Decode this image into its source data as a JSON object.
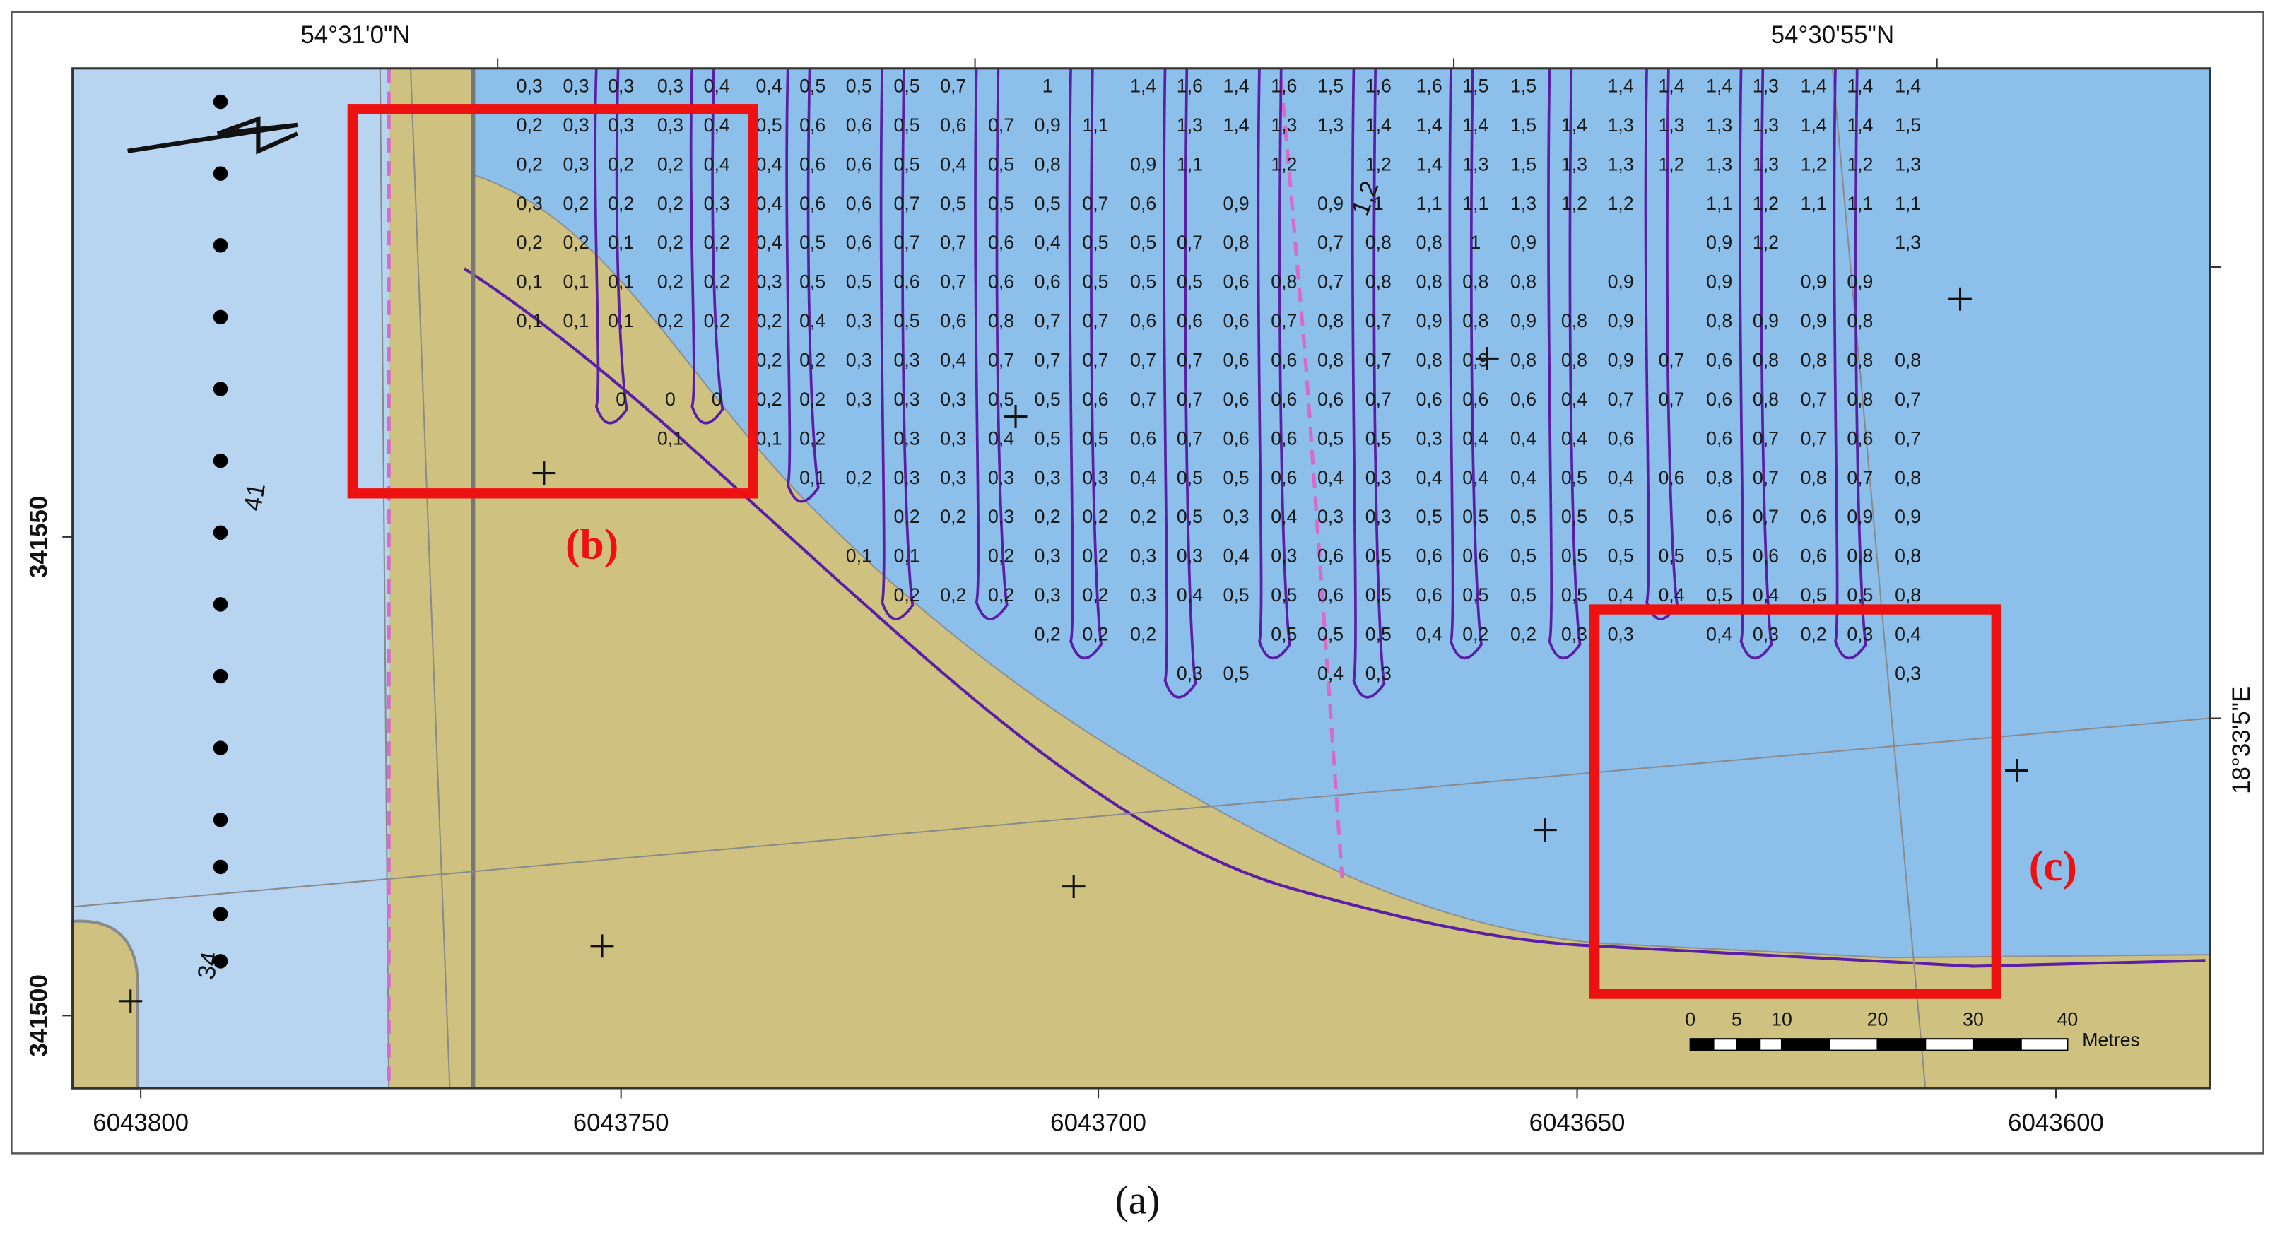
{
  "map": {
    "top_labels": [
      "54°31'0\"N",
      "54°30'55\"N"
    ],
    "left_labels": [
      "341550",
      "341500"
    ],
    "right_label": "18°33'5\"E",
    "bottom_labels": [
      "6043800",
      "6043750",
      "6043700",
      "6043650",
      "6043600"
    ],
    "line_labels": [
      "41",
      "34",
      "1,2"
    ],
    "scale": {
      "ticks": [
        "0",
        "5",
        "10",
        "20",
        "30",
        "40"
      ],
      "unit": "Metres"
    },
    "callouts": [
      "(b)",
      "(c)"
    ],
    "soundings": [
      [
        "0,3",
        "0,2",
        "0,2",
        "0,3",
        "0,2",
        "0,1",
        "0,1"
      ],
      [
        "0,3",
        "0,3",
        "0,3",
        "0,2",
        "0,2",
        "0,1",
        "0,1"
      ],
      [
        "0,3",
        "0,3",
        "0,2",
        "0,2",
        "0,1",
        "0,1",
        "0,1",
        null,
        "0"
      ],
      [
        "0,3",
        "0,3",
        "0,2",
        "0,2",
        "0,2",
        "0,2",
        "0,2",
        null,
        "0",
        "0,1"
      ],
      [
        "0,4",
        "0,4",
        "0,4",
        "0,3",
        "0,2",
        "0,2",
        "0,2",
        null,
        "0"
      ],
      [
        "0,4",
        "0,5",
        "0,4",
        "0,4",
        "0,4",
        "0,3",
        "0,2",
        "0,2",
        "0,2",
        "0,1"
      ],
      [
        "0,5",
        "0,6",
        "0,6",
        "0,6",
        "0,5",
        "0,5",
        "0,4",
        "0,2",
        "0,2",
        "0,2",
        "0,1"
      ],
      [
        "0,5",
        "0,6",
        "0,6",
        "0,6",
        "0,6",
        "0,5",
        "0,3",
        "0,3",
        "0,3",
        null,
        "0,2",
        null,
        "0,1"
      ],
      [
        "0,5",
        "0,5",
        "0,5",
        "0,7",
        "0,7",
        "0,6",
        "0,5",
        "0,3",
        "0,3",
        "0,3",
        "0,3",
        "0,2",
        "0,1",
        "0,2"
      ],
      [
        "0,7",
        "0,6",
        "0,4",
        "0,5",
        "0,7",
        "0,7",
        "0,6",
        "0,4",
        "0,3",
        "0,3",
        "0,3",
        "0,2",
        null,
        "0,2"
      ],
      [
        null,
        "0,7",
        "0,5",
        "0,5",
        "0,6",
        "0,6",
        "0,8",
        "0,7",
        "0,5",
        "0,4",
        "0,3",
        "0,3",
        "0,2",
        "0,2"
      ],
      [
        "1",
        "0,9",
        "0,8",
        "0,5",
        "0,4",
        "0,6",
        "0,7",
        "0,7",
        "0,5",
        "0,5",
        "0,3",
        "0,2",
        "0,3",
        "0,3",
        "0,2"
      ],
      [
        null,
        "1,1",
        null,
        "0,7",
        "0,5",
        "0,5",
        "0,7",
        "0,7",
        "0,6",
        "0,5",
        "0,3",
        "0,2",
        "0,2",
        "0,2",
        "0,2"
      ],
      [
        "1,4",
        null,
        "0,9",
        "0,6",
        "0,5",
        "0,5",
        "0,6",
        "0,7",
        "0,7",
        "0,6",
        "0,4",
        "0,2",
        "0,3",
        "0,3",
        "0,2"
      ],
      [
        "1,6",
        "1,3",
        "1,1",
        null,
        "0,7",
        "0,5",
        "0,6",
        "0,7",
        "0,7",
        "0,7",
        "0,5",
        "0,5",
        "0,3",
        "0,4",
        null,
        "0,3"
      ],
      [
        "1,4",
        "1,4",
        null,
        "0,9",
        "0,8",
        "0,6",
        "0,6",
        "0,6",
        "0,6",
        "0,6",
        "0,5",
        "0,3",
        "0,4",
        "0,5",
        null,
        "0,5"
      ],
      [
        "1,6",
        "1,3",
        "1,2",
        null,
        null,
        "0,8",
        "0,7",
        "0,6",
        "0,6",
        "0,6",
        "0,6",
        "0,4",
        "0,3",
        "0,5",
        "0,5"
      ],
      [
        "1,5",
        "1,3",
        null,
        "0,9",
        "0,7",
        "0,7",
        "0,8",
        "0,8",
        "0,6",
        "0,5",
        "0,4",
        "0,3",
        "0,6",
        "0,6",
        "0,5",
        "0,4"
      ],
      [
        "1,6",
        "1,4",
        "1,2",
        "1",
        "0,8",
        "0,8",
        "0,7",
        "0,7",
        "0,7",
        "0,5",
        "0,3",
        "0,3",
        "0,5",
        "0,5",
        "0,5",
        "0,3"
      ],
      [
        "1,6",
        "1,4",
        "1,4",
        "1,1",
        "0,8",
        "0,8",
        "0,9",
        "0,8",
        "0,6",
        "0,3",
        "0,4",
        "0,5",
        "0,6",
        "0,6",
        "0,4"
      ],
      [
        "1,5",
        "1,4",
        "1,3",
        "1,1",
        "1",
        "0,8",
        "0,8",
        "0,9",
        "0,6",
        "0,4",
        "0,4",
        "0,5",
        "0,6",
        "0,5",
        "0,2"
      ],
      [
        "1,5",
        "1,5",
        "1,5",
        "1,3",
        "0,9",
        "0,8",
        "0,9",
        "0,8",
        "0,6",
        "0,4",
        "0,4",
        "0,5",
        "0,5",
        "0,5",
        "0,2"
      ],
      [
        null,
        "1,4",
        "1,3",
        "1,2",
        null,
        null,
        "0,8",
        "0,8",
        "0,4",
        "0,4",
        "0,5",
        "0,5",
        "0,5",
        "0,5",
        "0,3"
      ],
      [
        "1,4",
        "1,3",
        "1,3",
        "1,2",
        null,
        "0,9",
        "0,9",
        "0,9",
        "0,7",
        "0,6",
        "0,4",
        "0,5",
        "0,5",
        "0,4",
        "0,3"
      ],
      [
        "1,4",
        "1,3",
        "1,2",
        null,
        null,
        null,
        null,
        "0,7",
        "0,7",
        null,
        "0,6",
        null,
        "0,5",
        "0,4"
      ],
      [
        "1,4",
        "1,3",
        "1,3",
        "1,1",
        "0,9",
        "0,9",
        "0,8",
        "0,6",
        "0,6",
        "0,6",
        "0,8",
        "0,6",
        "0,5",
        "0,5",
        "0,4"
      ],
      [
        "1,3",
        "1,3",
        "1,3",
        "1,2",
        "1,2",
        null,
        "0,9",
        "0,8",
        "0,8",
        "0,7",
        "0,7",
        "0,7",
        "0,6",
        "0,4",
        "0,3"
      ],
      [
        "1,4",
        "1,4",
        "1,2",
        "1,1",
        null,
        "0,9",
        "0,9",
        "0,8",
        "0,7",
        "0,7",
        "0,8",
        "0,6",
        "0,6",
        "0,5",
        "0,2"
      ],
      [
        "1,4",
        "1,4",
        "1,2",
        "1,1",
        null,
        "0,9",
        "0,8",
        "0,8",
        "0,8",
        "0,6",
        "0,7",
        "0,9",
        "0,8",
        "0,5",
        "0,3"
      ],
      [
        "1,4",
        "1,5",
        "1,3",
        "1,1",
        "1,3",
        null,
        null,
        "0,8",
        "0,7",
        "0,7",
        "0,8",
        "0,9",
        "0,8",
        "0,8",
        "0,4",
        "0,3"
      ]
    ]
  },
  "caption": "(a)"
}
